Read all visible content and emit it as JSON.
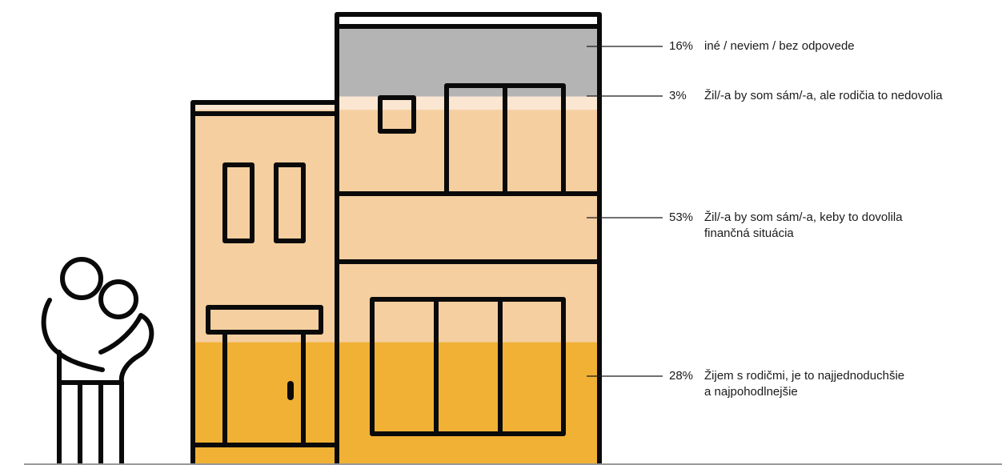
{
  "chart_data": {
    "type": "stacked-area-illustration",
    "title": "",
    "segments": [
      {
        "value": 16,
        "percent_label": "16%",
        "text_lines": [
          "iné / neviem / bez odpovede"
        ],
        "color": "#b4b4b4"
      },
      {
        "value": 3,
        "percent_label": "3%",
        "text_lines": [
          "Žil/-a by som sám/-a, ale rodičia to nedovolia"
        ],
        "color": "#fbe6d2"
      },
      {
        "value": 53,
        "percent_label": "53%",
        "text_lines": [
          "Žil/-a by som sám/-a, keby to dovolila",
          "finančná situácia"
        ],
        "color": "#f5cfa0"
      },
      {
        "value": 28,
        "percent_label": "28%",
        "text_lines": [
          "Žijem s rodičmi, je to najjednoduchšie",
          "a najpohodlnejšie"
        ],
        "color": "#f0b135"
      }
    ]
  },
  "colors": {
    "outline": "#0a0a0a",
    "ground": "#999999",
    "leader": "#1a1a1a"
  }
}
